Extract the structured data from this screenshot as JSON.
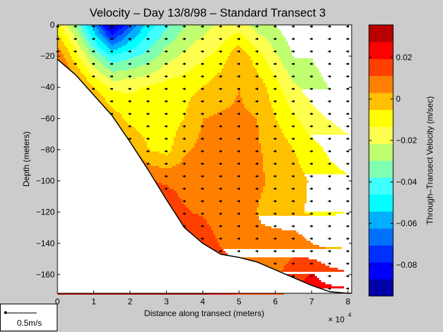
{
  "chart_data": {
    "type": "heatmap",
    "subtype": "filled-contour",
    "title": "Velocity – Day 13/8/98 – Standard Transect 3",
    "xlabel": "Distance along transect (meters)",
    "ylabel": "Depth (meters)",
    "x_multiplier_label": "× 10",
    "x_multiplier_exp": "4",
    "xlim": [
      0,
      8.1
    ],
    "ylim": [
      -172,
      0
    ],
    "xticks": [
      0,
      1,
      2,
      3,
      4,
      5,
      6,
      7,
      8
    ],
    "xtick_labels": [
      "0",
      "1",
      "2",
      "3",
      "4",
      "5",
      "6",
      "7",
      "8"
    ],
    "yticks": [
      0,
      -20,
      -40,
      -60,
      -80,
      -100,
      -120,
      -140,
      -160
    ],
    "ytick_labels": [
      "0",
      "−20",
      "−40",
      "−60",
      "−80",
      "−100",
      "−120",
      "−140",
      "−160"
    ],
    "colorbar": {
      "label": "Through–Transect Velocity (m/sec)",
      "range": [
        -0.095,
        0.0357
      ],
      "levels": 16,
      "ticks": [
        0.02,
        0,
        -0.02,
        -0.04,
        -0.06,
        -0.08
      ],
      "tick_labels": [
        "0.02",
        "0",
        "−0.02",
        "−0.04",
        "−0.06",
        "−0.08"
      ],
      "colors": [
        "#0000a8",
        "#0000ff",
        "#0030ff",
        "#0070ff",
        "#00b0ff",
        "#00ffff",
        "#40ffff",
        "#80ffb0",
        "#c0ff70",
        "#ffff50",
        "#ffff00",
        "#ffc000",
        "#ff8000",
        "#ff4000",
        "#ff0000",
        "#b80000"
      ]
    },
    "grid_x": [
      0,
      0.5,
      1,
      1.5,
      2,
      2.5,
      3,
      3.5,
      4,
      4.5,
      5,
      5.5,
      6,
      6.5,
      7,
      7.5,
      8
    ],
    "grid_depth": [
      0,
      -20,
      -40,
      -60,
      -80,
      -100,
      -120,
      -140,
      -160,
      -175
    ],
    "velocity": [
      [
        -0.01,
        -0.03,
        -0.06,
        -0.095,
        -0.07,
        -0.05,
        -0.04,
        -0.03,
        -0.025,
        -0.02,
        -0.018,
        -0.025,
        -0.03,
        -0.035,
        -0.035,
        -0.035,
        -0.035
      ],
      [
        0.01,
        -0.01,
        -0.03,
        -0.045,
        -0.04,
        -0.035,
        -0.025,
        -0.02,
        -0.015,
        -0.01,
        0.002,
        -0.01,
        -0.02,
        -0.03,
        -0.03,
        -0.035,
        -0.035
      ],
      [
        0.02,
        0.01,
        -0.005,
        -0.015,
        -0.015,
        -0.012,
        -0.01,
        -0.008,
        -0.005,
        0.0,
        0.003,
        0.0,
        -0.01,
        -0.02,
        -0.025,
        -0.03,
        -0.03
      ],
      [
        0.03,
        0.02,
        0.012,
        0.0,
        -0.008,
        -0.01,
        -0.01,
        -0.005,
        0.003,
        0.004,
        0.004,
        0.003,
        -0.005,
        -0.012,
        -0.018,
        -0.022,
        -0.025
      ],
      [
        0.03,
        0.03,
        0.02,
        0.015,
        0.005,
        -0.005,
        -0.008,
        0.002,
        0.005,
        0.005,
        0.005,
        0.004,
        0.0,
        -0.005,
        -0.01,
        -0.015,
        -0.018
      ],
      [
        0.03,
        0.03,
        0.03,
        0.025,
        0.02,
        0.012,
        0.01,
        0.008,
        0.009,
        0.009,
        0.004,
        0.004,
        0.002,
        -0.002,
        -0.006,
        -0.01,
        -0.012
      ],
      [
        0.03,
        0.03,
        0.03,
        0.03,
        0.025,
        0.02,
        0.018,
        0.012,
        0.01,
        0.005,
        0.004,
        0.003,
        0.0,
        -0.004,
        -0.006,
        -0.006,
        -0.005
      ],
      [
        0.03,
        0.03,
        0.03,
        0.03,
        0.03,
        0.028,
        0.025,
        0.022,
        0.018,
        0.01,
        0.005,
        0.004,
        0.006,
        0.008,
        0.003,
        0.0,
        0.002
      ],
      [
        0.03,
        0.03,
        0.03,
        0.03,
        0.03,
        0.03,
        0.03,
        0.028,
        0.025,
        0.02,
        0.01,
        0.008,
        0.01,
        0.015,
        0.02,
        0.015,
        0.012
      ],
      [
        0.03,
        0.03,
        0.03,
        0.03,
        0.03,
        0.03,
        0.03,
        0.03,
        0.03,
        0.025,
        0.02,
        0.02,
        0.02,
        0.022,
        0.025,
        0.025,
        0.025
      ]
    ],
    "bathymetry": {
      "x": [
        0,
        0.5,
        1,
        1.5,
        2,
        2.5,
        3,
        3.5,
        4,
        4.5,
        5,
        5.5,
        6,
        6.5,
        7,
        7.5,
        8,
        8.1
      ],
      "depth": [
        -22,
        -32,
        -45,
        -58,
        -75,
        -93,
        -112,
        -130,
        -140,
        -147,
        -149,
        -152,
        -157,
        -162,
        -167,
        -171,
        -172,
        -172
      ]
    },
    "stations_x": [
      0,
      0.5,
      1,
      1.5,
      2,
      2.5,
      3,
      3.5,
      4,
      4.5,
      5,
      5.5,
      6,
      6.5,
      7,
      7.5,
      8
    ]
  },
  "legend": {
    "scale_label": "0.5m/s"
  }
}
